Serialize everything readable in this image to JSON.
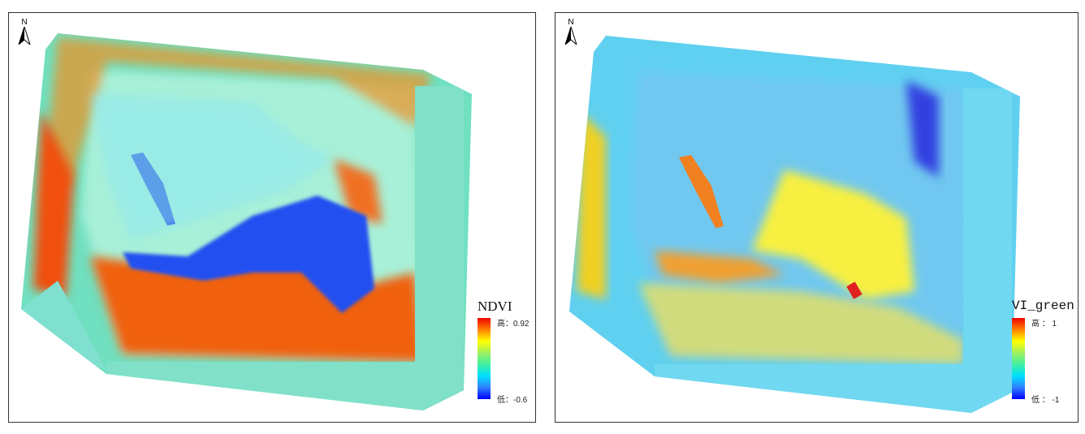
{
  "north_label": "N",
  "maps": [
    {
      "legend_title": "NDVI",
      "high_label": "高：0.92",
      "low_label": "低：-0.6"
    },
    {
      "legend_title": "VI_green",
      "high_label": "高 ： 1",
      "low_label": "低 ： -1"
    }
  ],
  "colors": {
    "high": "#f00000",
    "mid": "#ffff00",
    "low": "#0000ff"
  }
}
